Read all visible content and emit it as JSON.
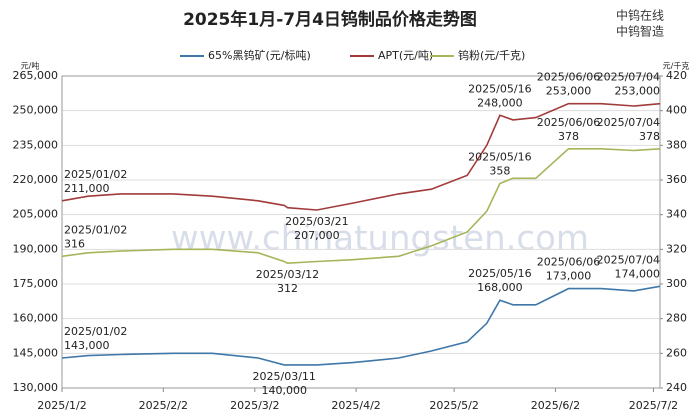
{
  "chart_data": {
    "type": "line",
    "title": "2025年1月-7月4日钨制品价格走势图",
    "brand": [
      "中钨在线",
      "中钨智造"
    ],
    "watermark": "www.chinatungsten.com",
    "y_label": "元/吨",
    "y2_label": "元/千克",
    "x": [
      "2025-01-02",
      "2025-01-10",
      "2025-01-20",
      "2025-02-05",
      "2025-02-17",
      "2025-03-03",
      "2025-03-11",
      "2025-03-12",
      "2025-03-21",
      "2025-04-01",
      "2025-04-15",
      "2025-04-25",
      "2025-05-06",
      "2025-05-12",
      "2025-05-16",
      "2025-05-20",
      "2025-05-27",
      "2025-06-06",
      "2025-06-16",
      "2025-06-26",
      "2025-07-04"
    ],
    "xlim": [
      "2025-01-02",
      "2025-07-04"
    ],
    "xticks": [
      {
        "value": "2025-01-02",
        "label": "2025/1/2"
      },
      {
        "value": "2025-02-02",
        "label": "2025/2/2"
      },
      {
        "value": "2025-03-02",
        "label": "2025/3/2"
      },
      {
        "value": "2025-04-02",
        "label": "2025/4/2"
      },
      {
        "value": "2025-05-02",
        "label": "2025/5/2"
      },
      {
        "value": "2025-06-02",
        "label": "2025/6/2"
      },
      {
        "value": "2025-07-02",
        "label": "2025/7/2"
      }
    ],
    "ylim": [
      130000,
      265000
    ],
    "yticks": [
      {
        "value": 130000,
        "label": "130,000"
      },
      {
        "value": 145000,
        "label": "145,000"
      },
      {
        "value": 160000,
        "label": "160,000"
      },
      {
        "value": 175000,
        "label": "175,000"
      },
      {
        "value": 190000,
        "label": "190,000"
      },
      {
        "value": 205000,
        "label": "205,000"
      },
      {
        "value": 220000,
        "label": "220,000"
      },
      {
        "value": 235000,
        "label": "235,000"
      },
      {
        "value": 250000,
        "label": "250,000"
      },
      {
        "value": 265000,
        "label": "265,000"
      }
    ],
    "y2lim": [
      240,
      420
    ],
    "y2ticks": [
      240,
      260,
      280,
      300,
      320,
      340,
      360,
      380,
      400,
      420
    ],
    "grid": true,
    "legend": "top",
    "series": [
      {
        "name": "65%黑钨矿(元/标吨)",
        "color": "#3f77a8",
        "values": [
          143000,
          144000,
          144500,
          145000,
          145000,
          143000,
          140000,
          140000,
          140000,
          141000,
          143000,
          146000,
          150000,
          158000,
          168000,
          166000,
          166000,
          173000,
          173000,
          172000,
          174000
        ],
        "date_labels": [
          "2025/01/02",
          null,
          null,
          null,
          null,
          null,
          "2025/03/11",
          null,
          null,
          null,
          null,
          null,
          null,
          null,
          "2025/05/16",
          null,
          null,
          "2025/06/06",
          null,
          null,
          "2025/07/04"
        ],
        "value_labels": [
          "143,000",
          null,
          null,
          null,
          null,
          null,
          "140,000",
          null,
          null,
          null,
          null,
          null,
          null,
          null,
          "168,000",
          null,
          null,
          "173,000",
          null,
          null,
          "174,000"
        ]
      },
      {
        "name": "APT(元/吨)",
        "color": "#a23b3b",
        "values": [
          211000,
          213000,
          214000,
          214000,
          213000,
          211000,
          209000,
          208000,
          207000,
          210000,
          214000,
          216000,
          222000,
          235000,
          248000,
          246000,
          247000,
          253000,
          253000,
          252000,
          253000
        ],
        "date_labels": [
          "2025/01/02",
          null,
          null,
          null,
          null,
          null,
          null,
          null,
          "2025/03/21",
          null,
          null,
          null,
          null,
          null,
          "2025/05/16",
          null,
          null,
          "2025/06/06",
          null,
          null,
          "2025/07/04"
        ],
        "value_labels": [
          "211,000",
          null,
          null,
          null,
          null,
          null,
          null,
          null,
          "207,000",
          null,
          null,
          null,
          null,
          null,
          "248,000",
          null,
          null,
          "253,000",
          null,
          null,
          "253,000"
        ]
      },
      {
        "name": "钨粉(元/千克)",
        "color": "#a4b55a",
        "axis": "y2",
        "values": [
          316,
          318,
          319,
          320,
          320,
          318,
          313,
          312,
          313,
          314,
          316,
          322,
          330,
          342,
          358,
          361,
          361,
          378,
          378,
          377,
          378
        ],
        "date_labels": [
          "2025/01/02",
          null,
          null,
          null,
          null,
          null,
          null,
          "2025/03/12",
          null,
          null,
          null,
          null,
          null,
          null,
          "2025/05/16",
          null,
          null,
          "2025/06/06",
          null,
          null,
          "2025/07/04"
        ],
        "value_labels": [
          "316",
          null,
          null,
          null,
          null,
          null,
          null,
          "312",
          null,
          null,
          null,
          null,
          null,
          null,
          "358",
          null,
          null,
          "378",
          null,
          null,
          "378"
        ]
      }
    ]
  }
}
